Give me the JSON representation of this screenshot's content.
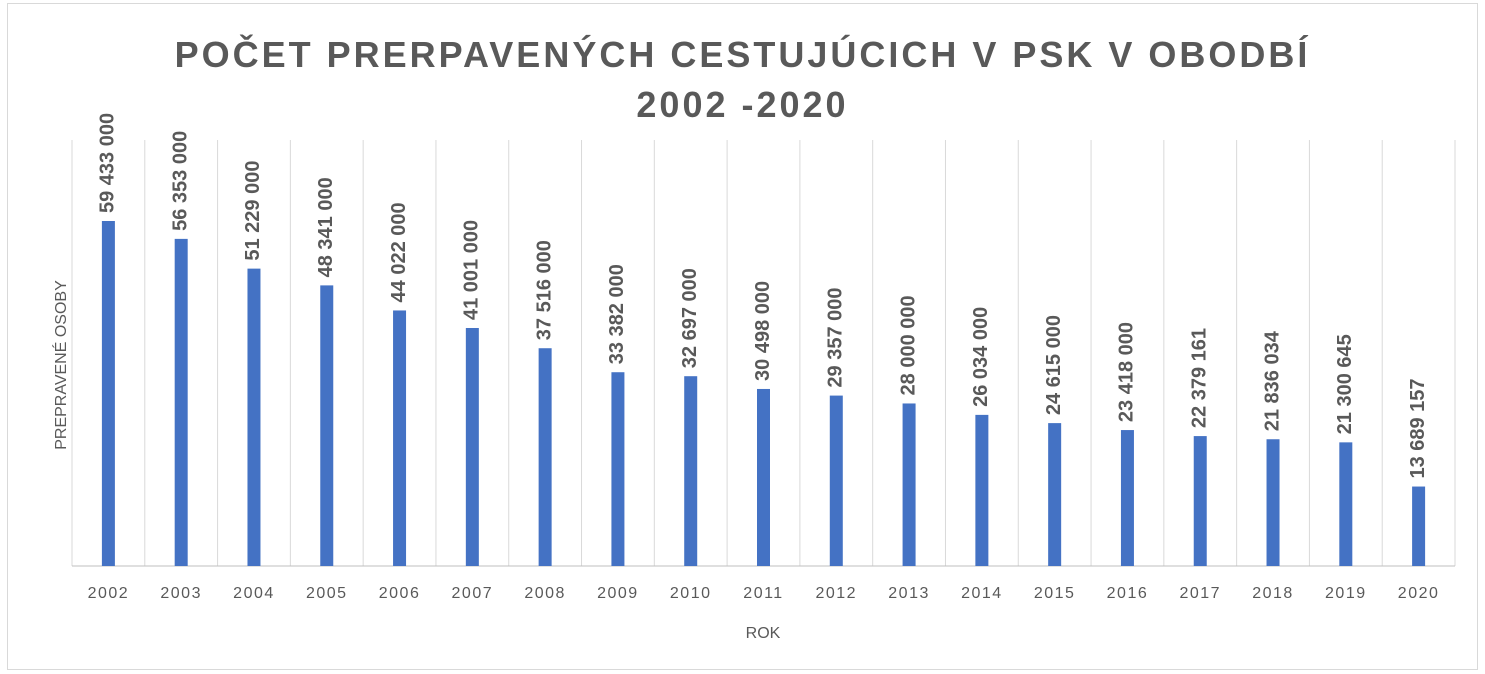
{
  "chart_data": {
    "type": "bar",
    "title": "POČET PRERPAVENÝCH CESTUJÚCICH V PSK V OBODBÍ 2002 -2020",
    "x_label": "ROK",
    "y_label": "PREPRAVENÉ OSOBY",
    "categories": [
      "2002",
      "2003",
      "2004",
      "2005",
      "2006",
      "2007",
      "2008",
      "2009",
      "2010",
      "2011",
      "2012",
      "2013",
      "2014",
      "2015",
      "2016",
      "2017",
      "2018",
      "2019",
      "2020"
    ],
    "values": [
      59433000,
      56353000,
      51229000,
      48341000,
      44022000,
      41001000,
      37516000,
      33382000,
      32697000,
      30498000,
      29357000,
      28000000,
      26034000,
      24615000,
      23418000,
      22379161,
      21836034,
      21300645,
      13689157
    ],
    "value_labels": [
      "59 433 000",
      "56 353 000",
      "51 229 000",
      "48 341 000",
      "44 022 000",
      "41 001 000",
      "37 516 000",
      "33 382 000",
      "32 697 000",
      "30 498 000",
      "29 357 000",
      "28 000 000",
      "26 034 000",
      "24 615 000",
      "23 418 000",
      "22 379 161",
      "21 836 034",
      "21 300 645",
      "13 689 157"
    ],
    "color": "#4472c4"
  }
}
